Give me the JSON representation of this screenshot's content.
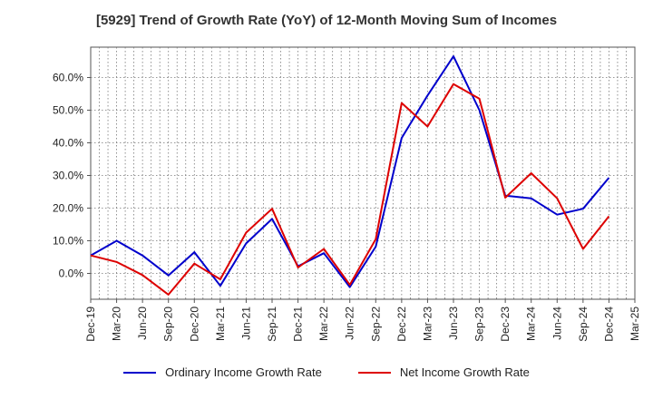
{
  "chart_data": {
    "type": "line",
    "title": "[5929]  Trend of Growth Rate (YoY) of 12-Month Moving Sum of Incomes",
    "categories": [
      "Dec-19",
      "Mar-20",
      "Jun-20",
      "Sep-20",
      "Dec-20",
      "Mar-21",
      "Jun-21",
      "Sep-21",
      "Dec-21",
      "Mar-22",
      "Jun-22",
      "Sep-22",
      "Dec-22",
      "Mar-23",
      "Jun-23",
      "Sep-23",
      "Dec-23",
      "Mar-24",
      "Jun-24",
      "Sep-24",
      "Dec-24",
      "Mar-25"
    ],
    "y_ticks": [
      "0.0%",
      "10.0%",
      "20.0%",
      "30.0%",
      "40.0%",
      "50.0%",
      "60.0%"
    ],
    "ylim": [
      -8,
      69
    ],
    "grid": true,
    "legend_position": "bottom",
    "series": [
      {
        "name": "Ordinary Income Growth Rate",
        "color": "#0000cc",
        "values": [
          5.5,
          10.0,
          5.5,
          -0.6,
          6.5,
          -3.8,
          9.2,
          16.7,
          2.2,
          6.2,
          -4.2,
          8.2,
          41.5,
          54.5,
          66.5,
          50.0,
          23.8,
          23.0,
          18.0,
          19.8,
          29.3,
          null
        ]
      },
      {
        "name": "Net Income Growth Rate",
        "color": "#dd0000",
        "values": [
          5.5,
          3.5,
          -0.5,
          -6.5,
          3.0,
          -1.8,
          12.5,
          19.8,
          1.8,
          7.5,
          -3.5,
          10.5,
          52.2,
          45.0,
          58.0,
          53.5,
          23.2,
          30.7,
          23.0,
          7.5,
          17.5,
          null
        ]
      }
    ]
  }
}
